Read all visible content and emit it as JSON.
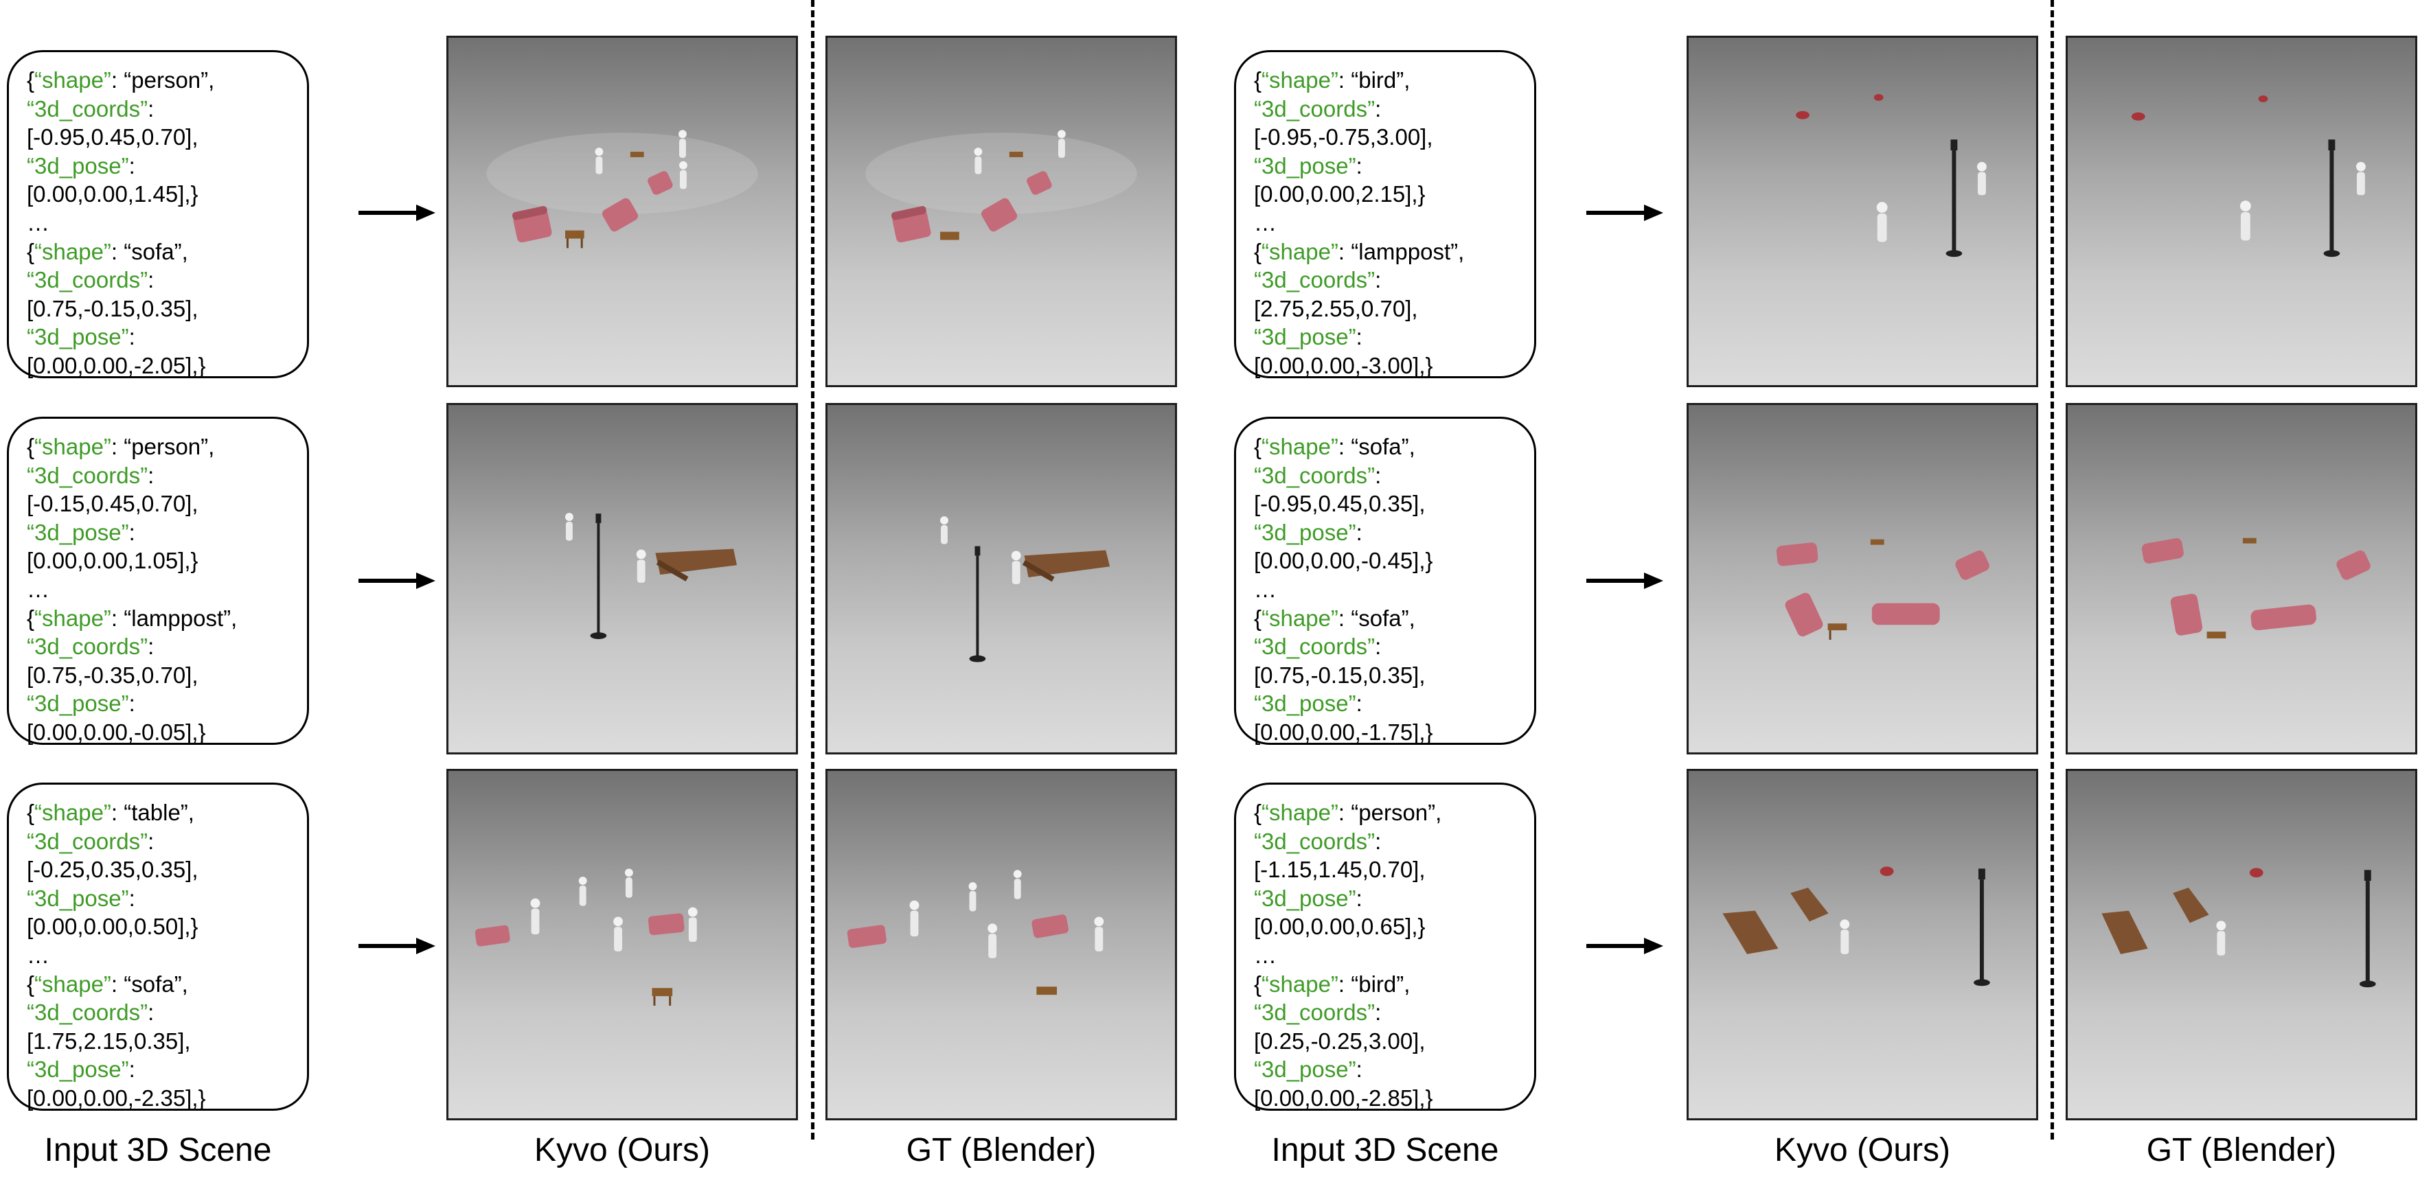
{
  "colors": {
    "key": "#3f9b27",
    "sofa": "#c46b7a",
    "wood": "#8a5a2b",
    "figure": "#f2f2f2",
    "lamppost": "#1f1f1f",
    "bird": "#a8343a"
  },
  "captions": [
    "Input 3D Scene",
    "Kyvo (Ours)",
    "GT (Blender)",
    "Input 3D Scene",
    "Kyvo (Ours)",
    "GT (Blender)"
  ],
  "scenes": [
    {
      "lines": [
        [
          {
            "t": "{",
            "k": 0
          },
          {
            "t": "“shape”",
            "k": 1
          },
          {
            "t": ": “person”,",
            "k": 0
          }
        ],
        [
          {
            "t": "“3d_coords”",
            "k": 1
          },
          {
            "t": ":",
            "k": 0
          }
        ],
        [
          {
            "t": "[-0.95,0.45,0.70],",
            "k": 0
          }
        ],
        [
          {
            "t": "“3d_pose”",
            "k": 1
          },
          {
            "t": ":",
            "k": 0
          }
        ],
        [
          {
            "t": "[0.00,0.00,1.45],}",
            "k": 0
          }
        ],
        [
          {
            "t": "…",
            "k": 0
          }
        ],
        [
          {
            "t": "{",
            "k": 0
          },
          {
            "t": "“shape”",
            "k": 1
          },
          {
            "t": ": “sofa”,",
            "k": 0
          }
        ],
        [
          {
            "t": "“3d_coords”",
            "k": 1
          },
          {
            "t": ":",
            "k": 0
          }
        ],
        [
          {
            "t": "[0.75,-0.15,0.35],",
            "k": 0
          }
        ],
        [
          {
            "t": "“3d_pose”",
            "k": 1
          },
          {
            "t": ":",
            "k": 0
          }
        ],
        [
          {
            "t": "[0.00,0.00,-2.05],}",
            "k": 0
          }
        ]
      ]
    },
    {
      "lines": [
        [
          {
            "t": "{",
            "k": 0
          },
          {
            "t": "“shape”",
            "k": 1
          },
          {
            "t": ": “person”,",
            "k": 0
          }
        ],
        [
          {
            "t": "“3d_coords”",
            "k": 1
          },
          {
            "t": ":",
            "k": 0
          }
        ],
        [
          {
            "t": "[-0.15,0.45,0.70],",
            "k": 0
          }
        ],
        [
          {
            "t": "“3d_pose”",
            "k": 1
          },
          {
            "t": ":",
            "k": 0
          }
        ],
        [
          {
            "t": "[0.00,0.00,1.05],}",
            "k": 0
          }
        ],
        [
          {
            "t": "…",
            "k": 0
          }
        ],
        [
          {
            "t": "{",
            "k": 0
          },
          {
            "t": "“shape”",
            "k": 1
          },
          {
            "t": ": “lamppost”,",
            "k": 0
          }
        ],
        [
          {
            "t": "“3d_coords”",
            "k": 1
          },
          {
            "t": ":",
            "k": 0
          }
        ],
        [
          {
            "t": "[0.75,-0.35,0.70],",
            "k": 0
          }
        ],
        [
          {
            "t": "“3d_pose”",
            "k": 1
          },
          {
            "t": ":",
            "k": 0
          }
        ],
        [
          {
            "t": "[0.00,0.00,-0.05],}",
            "k": 0
          }
        ]
      ]
    },
    {
      "lines": [
        [
          {
            "t": "{",
            "k": 0
          },
          {
            "t": "“shape”",
            "k": 1
          },
          {
            "t": ": “table”,",
            "k": 0
          }
        ],
        [
          {
            "t": "“3d_coords”",
            "k": 1
          },
          {
            "t": ":",
            "k": 0
          }
        ],
        [
          {
            "t": "[-0.25,0.35,0.35],",
            "k": 0
          }
        ],
        [
          {
            "t": "“3d_pose”",
            "k": 1
          },
          {
            "t": ":",
            "k": 0
          }
        ],
        [
          {
            "t": "[0.00,0.00,0.50],}",
            "k": 0
          }
        ],
        [
          {
            "t": "…",
            "k": 0
          }
        ],
        [
          {
            "t": "{",
            "k": 0
          },
          {
            "t": "“shape”",
            "k": 1
          },
          {
            "t": ": “sofa”,",
            "k": 0
          }
        ],
        [
          {
            "t": "“3d_coords”",
            "k": 1
          },
          {
            "t": ":",
            "k": 0
          }
        ],
        [
          {
            "t": "[1.75,2.15,0.35],",
            "k": 0
          }
        ],
        [
          {
            "t": "“3d_pose”",
            "k": 1
          },
          {
            "t": ":",
            "k": 0
          }
        ],
        [
          {
            "t": "[0.00,0.00,-2.35],}",
            "k": 0
          }
        ]
      ]
    },
    {
      "lines": [
        [
          {
            "t": "{",
            "k": 0
          },
          {
            "t": "“shape”",
            "k": 1
          },
          {
            "t": ": “bird”,",
            "k": 0
          }
        ],
        [
          {
            "t": "“3d_coords”",
            "k": 1
          },
          {
            "t": ":",
            "k": 0
          }
        ],
        [
          {
            "t": "[-0.95,-0.75,3.00],",
            "k": 0
          }
        ],
        [
          {
            "t": "“3d_pose”",
            "k": 1
          },
          {
            "t": ":",
            "k": 0
          }
        ],
        [
          {
            "t": "[0.00,0.00,2.15],}",
            "k": 0
          }
        ],
        [
          {
            "t": "…",
            "k": 0
          }
        ],
        [
          {
            "t": "{",
            "k": 0
          },
          {
            "t": "“shape”",
            "k": 1
          },
          {
            "t": ": “lamppost”,",
            "k": 0
          }
        ],
        [
          {
            "t": "“3d_coords”",
            "k": 1
          },
          {
            "t": ":",
            "k": 0
          }
        ],
        [
          {
            "t": "[2.75,2.55,0.70],",
            "k": 0
          }
        ],
        [
          {
            "t": "“3d_pose”",
            "k": 1
          },
          {
            "t": ":",
            "k": 0
          }
        ],
        [
          {
            "t": "[0.00,0.00,-3.00],}",
            "k": 0
          }
        ]
      ]
    },
    {
      "lines": [
        [
          {
            "t": "{",
            "k": 0
          },
          {
            "t": "“shape”",
            "k": 1
          },
          {
            "t": ": “sofa”,",
            "k": 0
          }
        ],
        [
          {
            "t": "“3d_coords”",
            "k": 1
          },
          {
            "t": ":",
            "k": 0
          }
        ],
        [
          {
            "t": "[-0.95,0.45,0.35],",
            "k": 0
          }
        ],
        [
          {
            "t": "“3d_pose”",
            "k": 1
          },
          {
            "t": ":",
            "k": 0
          }
        ],
        [
          {
            "t": "[0.00,0.00,-0.45],}",
            "k": 0
          }
        ],
        [
          {
            "t": "…",
            "k": 0
          }
        ],
        [
          {
            "t": "{",
            "k": 0
          },
          {
            "t": "“shape”",
            "k": 1
          },
          {
            "t": ": “sofa”,",
            "k": 0
          }
        ],
        [
          {
            "t": "“3d_coords”",
            "k": 1
          },
          {
            "t": ":",
            "k": 0
          }
        ],
        [
          {
            "t": "[0.75,-0.15,0.35],",
            "k": 0
          }
        ],
        [
          {
            "t": "“3d_pose”",
            "k": 1
          },
          {
            "t": ":",
            "k": 0
          }
        ],
        [
          {
            "t": "[0.00,0.00,-1.75],}",
            "k": 0
          }
        ]
      ]
    },
    {
      "lines": [
        [
          {
            "t": "{",
            "k": 0
          },
          {
            "t": "“shape”",
            "k": 1
          },
          {
            "t": ": “person”,",
            "k": 0
          }
        ],
        [
          {
            "t": "“3d_coords”",
            "k": 1
          },
          {
            "t": ":",
            "k": 0
          }
        ],
        [
          {
            "t": "[-1.15,1.45,0.70],",
            "k": 0
          }
        ],
        [
          {
            "t": "“3d_pose”",
            "k": 1
          },
          {
            "t": ":",
            "k": 0
          }
        ],
        [
          {
            "t": "[0.00,0.00,0.65],}",
            "k": 0
          }
        ],
        [
          {
            "t": "…",
            "k": 0
          }
        ],
        [
          {
            "t": "{",
            "k": 0
          },
          {
            "t": "“shape”",
            "k": 1
          },
          {
            "t": ": “bird”,",
            "k": 0
          }
        ],
        [
          {
            "t": "“3d_coords”",
            "k": 1
          },
          {
            "t": ":",
            "k": 0
          }
        ],
        [
          {
            "t": "[0.25,-0.25,3.00],",
            "k": 0
          }
        ],
        [
          {
            "t": "“3d_pose”",
            "k": 1
          },
          {
            "t": ":",
            "k": 0
          }
        ],
        [
          {
            "t": "[0.00,0.00,-2.85],}",
            "k": 0
          }
        ]
      ]
    }
  ]
}
